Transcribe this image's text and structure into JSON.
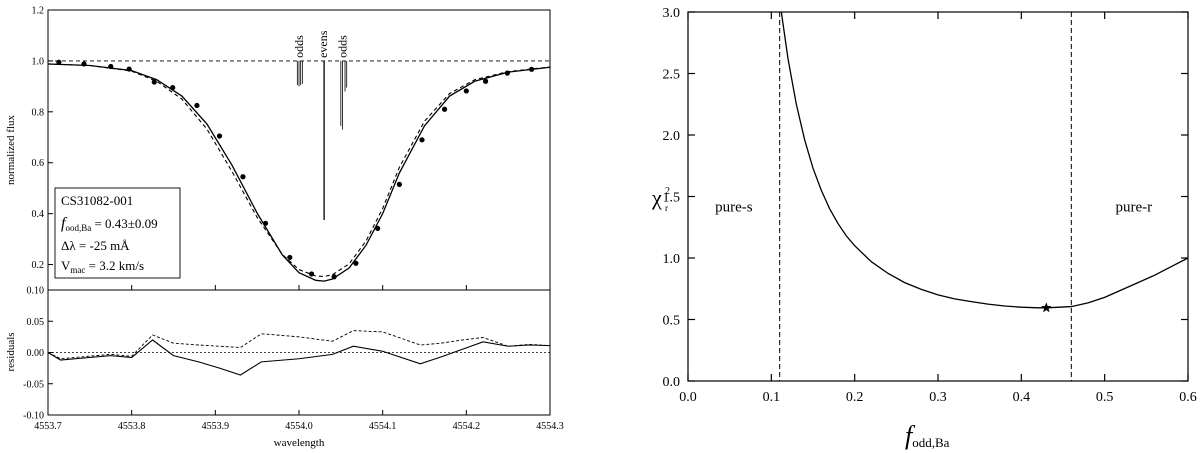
{
  "chart_data": [
    {
      "type": "line",
      "panel": "spectrum-fit",
      "xlabel": "wavelength",
      "ylabel": "normalized flux",
      "xlim": [
        4553.7,
        4554.3
      ],
      "ylim": [
        0.1,
        1.2
      ],
      "x_ticks": [
        "4553.7",
        "4553.8",
        "4553.9",
        "4554.0",
        "4554.1",
        "4554.2",
        "4554.3"
      ],
      "y_ticks": [
        "0.2",
        "0.4",
        "0.6",
        "0.8",
        "1.0",
        "1.2"
      ],
      "continuum": 1.0,
      "observed": {
        "x": [
          4553.713,
          4553.743,
          4553.775,
          4553.797,
          4553.827,
          4553.849,
          4553.878,
          4553.905,
          4553.933,
          4553.96,
          4553.989,
          4554.015,
          4554.042,
          4554.068,
          4554.094,
          4554.12,
          4554.147,
          4554.174,
          4554.2,
          4554.223,
          4554.249,
          4554.278
        ],
        "y": [
          0.995,
          0.988,
          0.978,
          0.968,
          0.917,
          0.895,
          0.825,
          0.705,
          0.545,
          0.362,
          0.228,
          0.163,
          0.152,
          0.205,
          0.342,
          0.515,
          0.69,
          0.81,
          0.882,
          0.92,
          0.952,
          0.967
        ]
      },
      "model_fit": {
        "x": [
          4553.7,
          4553.75,
          4553.8,
          4553.83,
          4553.86,
          4553.89,
          4553.92,
          4553.95,
          4553.98,
          4554.0,
          4554.02,
          4554.03,
          4554.04,
          4554.06,
          4554.08,
          4554.1,
          4554.12,
          4554.15,
          4554.18,
          4554.21,
          4554.25,
          4554.3
        ],
        "y": [
          0.988,
          0.982,
          0.962,
          0.926,
          0.862,
          0.752,
          0.59,
          0.402,
          0.238,
          0.168,
          0.138,
          0.135,
          0.143,
          0.187,
          0.275,
          0.4,
          0.56,
          0.745,
          0.862,
          0.92,
          0.956,
          0.975
        ]
      },
      "model_alt": {
        "x": [
          4553.7,
          4553.75,
          4553.8,
          4553.83,
          4553.86,
          4553.89,
          4553.92,
          4553.95,
          4553.98,
          4554.0,
          4554.02,
          4554.03,
          4554.04,
          4554.06,
          4554.08,
          4554.1,
          4554.12,
          4554.15,
          4554.18,
          4554.21,
          4554.25,
          4554.3
        ],
        "y": [
          0.988,
          0.982,
          0.96,
          0.92,
          0.85,
          0.732,
          0.565,
          0.385,
          0.24,
          0.18,
          0.155,
          0.153,
          0.16,
          0.203,
          0.292,
          0.42,
          0.582,
          0.763,
          0.872,
          0.926,
          0.958,
          0.976
        ]
      },
      "isotope_lines": {
        "odds_left": [
          {
            "x": 4553.998,
            "depth": 0.905
          },
          {
            "x": 4554.0,
            "depth": 0.9
          },
          {
            "x": 4554.002,
            "depth": 0.905
          },
          {
            "x": 4554.004,
            "depth": 0.91
          }
        ],
        "evens": [
          {
            "x": 4554.03,
            "depth": 0.375
          }
        ],
        "odds_right": [
          {
            "x": 4554.05,
            "depth": 0.745
          },
          {
            "x": 4554.052,
            "depth": 0.73
          },
          {
            "x": 4554.055,
            "depth": 0.88
          },
          {
            "x": 4554.057,
            "depth": 0.895
          }
        ],
        "labels": {
          "odds_left": "odds",
          "evens": "evens",
          "odds_right": "odds"
        }
      },
      "annotation": {
        "star": "CS31082-001",
        "f_main": "f",
        "f_sub": "ood,Ba",
        "f_value": " = 0.43±0.09",
        "dlambda": "Δλ = -25 mÅ",
        "v_main": "V",
        "v_sub": "mac",
        "v_value": " = 3.2 km/s"
      }
    },
    {
      "type": "line",
      "panel": "residuals",
      "xlabel": "wavelength",
      "ylabel": "residuals",
      "xlim": [
        4553.7,
        4554.3
      ],
      "ylim": [
        -0.1,
        0.1
      ],
      "y_ticks": [
        "-0.10",
        "-0.05",
        "0.00",
        "0.05",
        "0.10"
      ],
      "zero_line": 0.0,
      "residual_fit": {
        "x": [
          4553.7,
          4553.715,
          4553.775,
          4553.8,
          4553.825,
          4553.85,
          4553.88,
          4553.905,
          4553.93,
          4553.955,
          4554.0,
          4554.04,
          4554.065,
          4554.1,
          4554.145,
          4554.17,
          4554.195,
          4554.22,
          4554.25,
          4554.275,
          4554.3
        ],
        "y": [
          0.0,
          -0.012,
          -0.005,
          -0.008,
          0.02,
          -0.005,
          -0.015,
          -0.025,
          -0.036,
          -0.015,
          -0.01,
          -0.003,
          0.01,
          0.002,
          -0.018,
          -0.007,
          0.005,
          0.017,
          0.01,
          0.012,
          0.011
        ]
      },
      "residual_alt": {
        "x": [
          4553.7,
          4553.715,
          4553.775,
          4553.8,
          4553.825,
          4553.85,
          4553.88,
          4553.905,
          4553.93,
          4553.955,
          4554.0,
          4554.04,
          4554.065,
          4554.1,
          4554.145,
          4554.17,
          4554.195,
          4554.22,
          4554.25,
          4554.275,
          4554.3
        ],
        "y": [
          0.0,
          -0.01,
          -0.003,
          -0.006,
          0.028,
          0.015,
          0.012,
          0.01,
          0.008,
          0.03,
          0.025,
          0.018,
          0.035,
          0.033,
          0.012,
          0.015,
          0.02,
          0.024,
          0.01,
          0.013,
          0.011
        ]
      }
    },
    {
      "type": "line",
      "panel": "chi2",
      "xlabel_main": "f",
      "xlabel_sub": "odd,Ba",
      "ylabel_main": "χ",
      "ylabel_sup": "2",
      "ylabel_sub": "r",
      "xlim": [
        0.0,
        0.6
      ],
      "ylim": [
        0.0,
        3.0
      ],
      "x_ticks": [
        "0.0",
        "0.1",
        "0.2",
        "0.3",
        "0.4",
        "0.5",
        "0.6"
      ],
      "y_ticks": [
        "0.0",
        "0.5",
        "1.0",
        "1.5",
        "2.0",
        "2.5",
        "3.0"
      ],
      "curve": {
        "x": [
          0.112,
          0.12,
          0.13,
          0.14,
          0.15,
          0.16,
          0.17,
          0.18,
          0.19,
          0.2,
          0.22,
          0.24,
          0.26,
          0.28,
          0.3,
          0.32,
          0.34,
          0.36,
          0.38,
          0.4,
          0.42,
          0.43,
          0.44,
          0.46,
          0.48,
          0.5,
          0.52,
          0.54,
          0.56,
          0.58,
          0.6
        ],
        "y": [
          3.0,
          2.62,
          2.25,
          1.96,
          1.73,
          1.55,
          1.4,
          1.28,
          1.18,
          1.1,
          0.97,
          0.875,
          0.8,
          0.745,
          0.7,
          0.668,
          0.645,
          0.625,
          0.61,
          0.6,
          0.595,
          0.595,
          0.598,
          0.605,
          0.635,
          0.68,
          0.74,
          0.8,
          0.86,
          0.93,
          1.0
        ]
      },
      "best_fit": {
        "x": 0.43,
        "y": 0.595
      },
      "vlines": [
        0.11,
        0.46
      ],
      "regions": [
        {
          "text": "pure-s",
          "x": 0.055,
          "y": 1.38
        },
        {
          "text": "pure-r",
          "x": 0.535,
          "y": 1.38
        }
      ]
    }
  ]
}
